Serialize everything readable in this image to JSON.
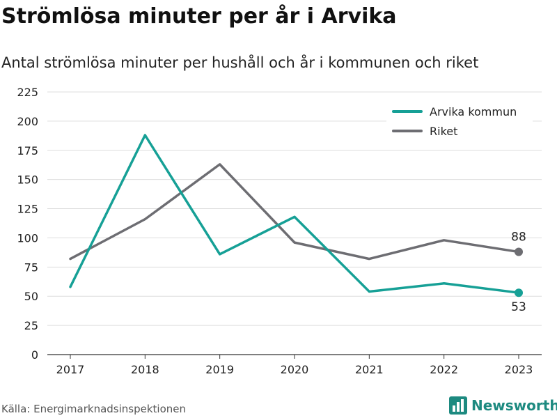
{
  "title": "Strömlösa minuter per år i Arvika",
  "subtitle": "Antal strömlösa minuter per hushåll och år i kommunen och riket",
  "source": "Källa: Energimarknadsinspektionen",
  "brand": "Newsworthy",
  "colors": {
    "arvika": "#16a096",
    "riket": "#6d6d72",
    "grid": "#dddddd",
    "brand": "#1d8a80"
  },
  "chart_data": {
    "type": "line",
    "x": [
      "2017",
      "2018",
      "2019",
      "2020",
      "2021",
      "2022",
      "2023"
    ],
    "ylim": [
      0,
      225
    ],
    "yticks": [
      "0",
      "25",
      "50",
      "75",
      "100",
      "125",
      "150",
      "175",
      "200",
      "225"
    ],
    "grid": true,
    "legend": "top-right",
    "series": [
      {
        "name": "Arvika kommun",
        "values": [
          58,
          188,
          86,
          118,
          54,
          61,
          53
        ],
        "end_label": "53"
      },
      {
        "name": "Riket",
        "values": [
          82,
          116,
          163,
          96,
          82,
          98,
          88
        ],
        "end_label": "88"
      }
    ]
  }
}
